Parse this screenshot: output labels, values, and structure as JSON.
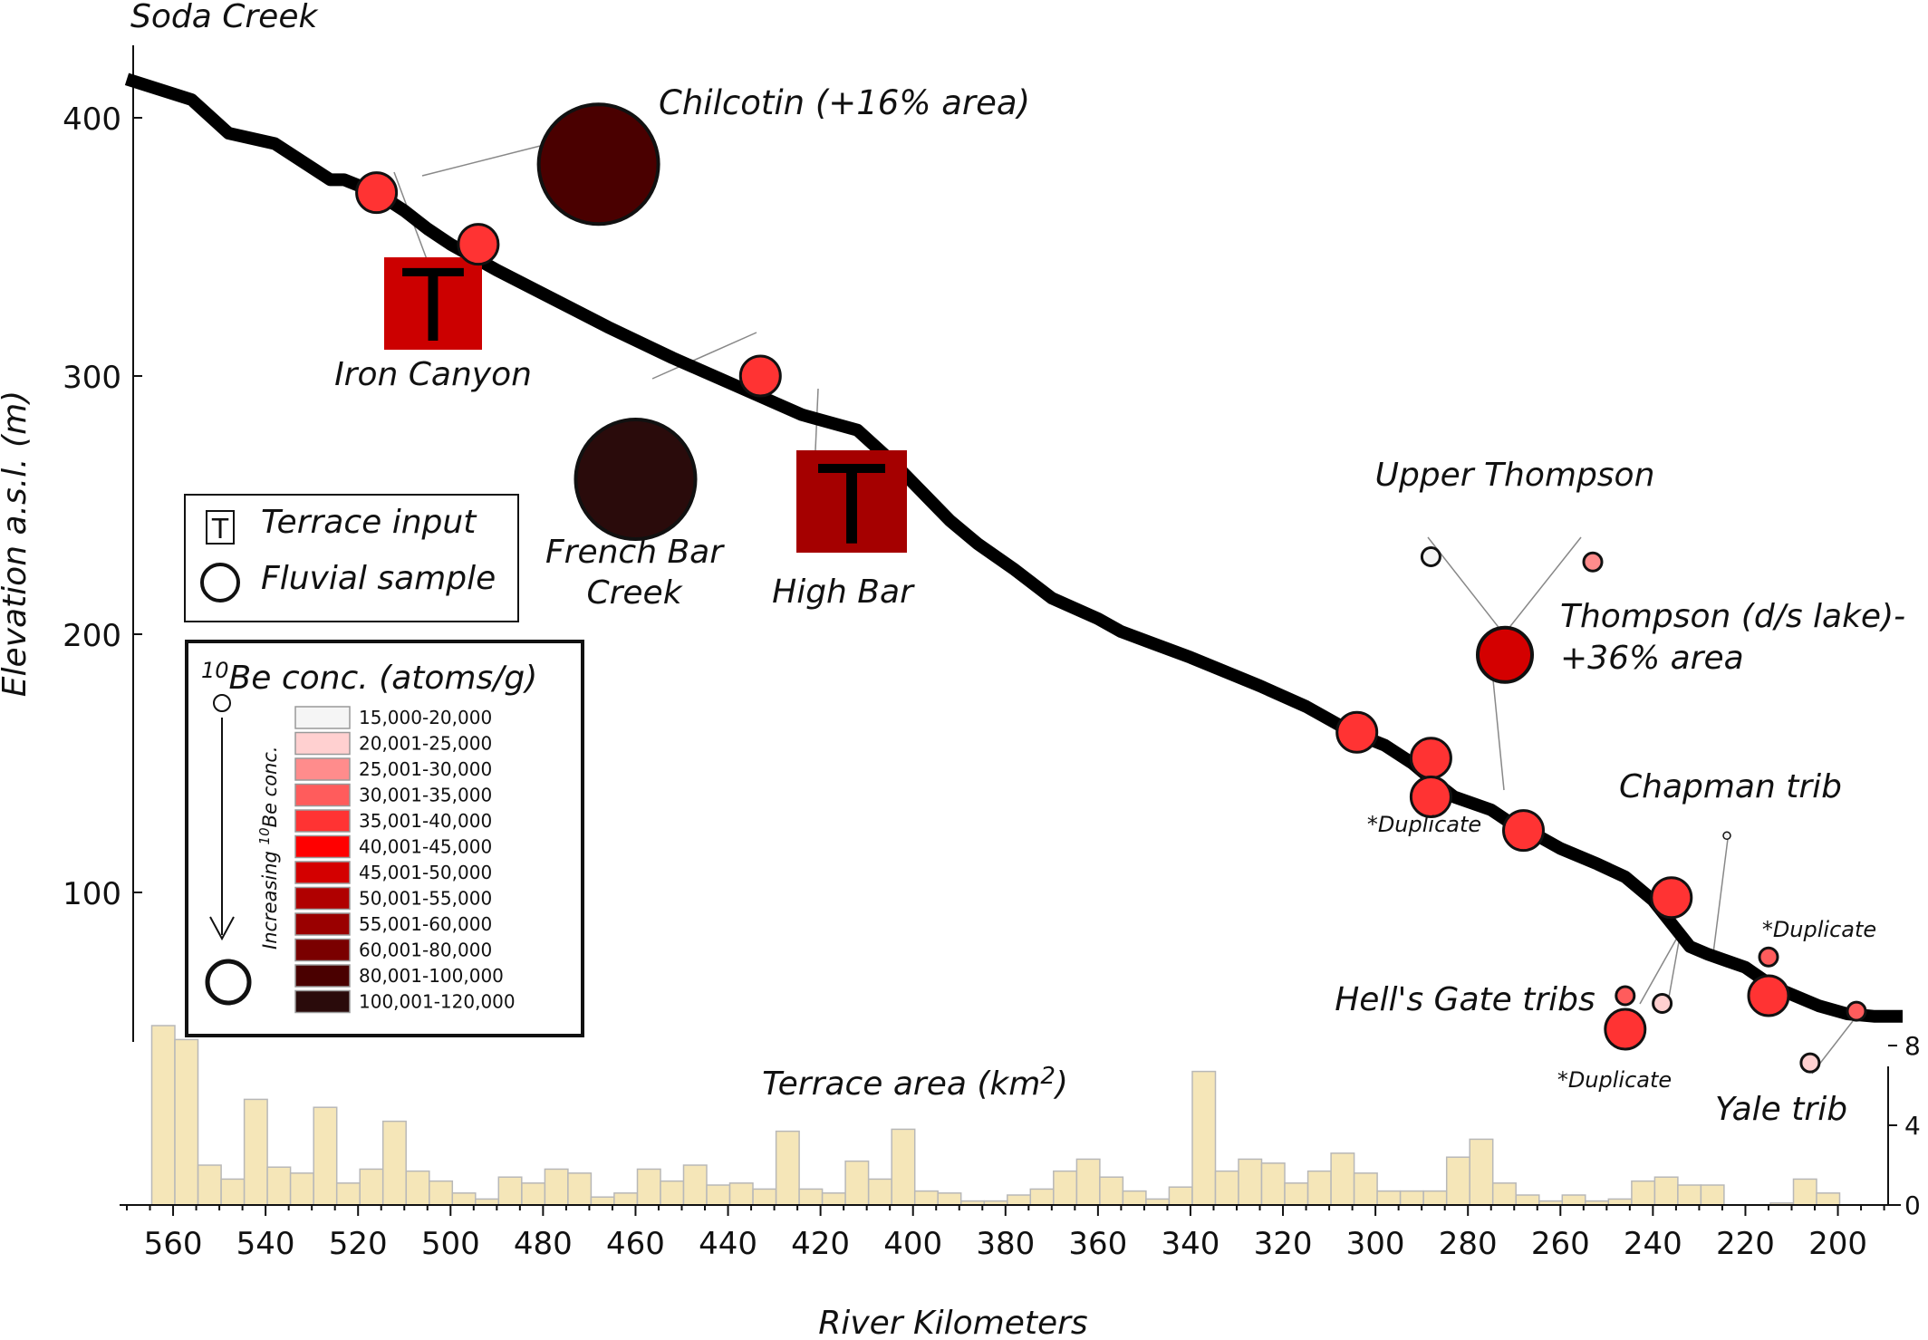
{
  "chart_data": [
    {
      "type": "line",
      "title": "",
      "start_label": "Soda Creek",
      "xlabel": "River Kilometers",
      "ylabel": "Elevation a.s.l. (m)",
      "xlim": [
        570,
        186
      ],
      "ylim": [
        55,
        415
      ],
      "y_ticks": [
        100,
        200,
        300,
        400
      ],
      "x_ticks": [
        560,
        540,
        520,
        500,
        480,
        460,
        440,
        420,
        400,
        380,
        360,
        340,
        320,
        300,
        280,
        260,
        240,
        220,
        200
      ],
      "grid": false,
      "profile": {
        "x": [
          570,
          556,
          548,
          538,
          526,
          523,
          516,
          510,
          505,
          500,
          490,
          478,
          466,
          452,
          438,
          424,
          412,
          404,
          398,
          392,
          386,
          378,
          370,
          360,
          355,
          340,
          325,
          315,
          305,
          298,
          292,
          288,
          283,
          275,
          270,
          265,
          260,
          252,
          246,
          240,
          236,
          232,
          228,
          220,
          216,
          212,
          204,
          198,
          192,
          186
        ],
        "y": [
          415,
          407,
          394,
          390,
          376,
          376,
          371,
          364,
          357,
          351,
          341,
          330,
          319,
          307,
          296,
          285,
          279,
          266,
          255,
          244,
          235,
          225,
          214,
          206,
          201,
          191,
          180,
          172,
          162,
          157,
          150,
          144,
          137,
          132,
          126,
          122,
          117,
          111,
          106,
          97,
          88,
          79,
          76,
          71,
          66,
          62,
          56,
          53,
          52,
          52
        ]
      },
      "fluvial_samples": [
        {
          "km": 516,
          "elev": 371,
          "conc_class": "35,001-40,000",
          "size": "medium"
        },
        {
          "km": 494,
          "elev": 351,
          "conc_class": "35,001-40,000",
          "size": "medium"
        },
        {
          "km": 468,
          "elev": 382,
          "conc_class": "80,001-100,000",
          "size": "large",
          "label": "Chilcotin (+16% area)"
        },
        {
          "km": 460,
          "elev": 260,
          "conc_class": "100,001-120,000",
          "size": "large",
          "label": "French Bar Creek"
        },
        {
          "km": 433,
          "elev": 300,
          "conc_class": "35,001-40,000",
          "size": "medium"
        },
        {
          "km": 304,
          "elev": 162,
          "conc_class": "35,001-40,000",
          "size": "medium"
        },
        {
          "km": 288,
          "elev": 152,
          "conc_class": "35,001-40,000",
          "size": "medium"
        },
        {
          "km": 288,
          "elev": 137,
          "conc_class": "35,001-40,000",
          "size": "medium",
          "label": "*Duplicate"
        },
        {
          "km": 288,
          "elev": 230,
          "conc_class": "15,000-20,000",
          "size": "small"
        },
        {
          "km": 253,
          "elev": 228,
          "conc_class": "25,001-30,000",
          "size": "small"
        },
        {
          "km": 272,
          "elev": 192,
          "conc_class": "45,001-50,000",
          "size": "large",
          "label": "Thompson (d/s lake)- +36% area"
        },
        {
          "km": 268,
          "elev": 124,
          "conc_class": "35,001-40,000",
          "size": "medium"
        },
        {
          "km": 236,
          "elev": 98,
          "conc_class": "35,001-40,000",
          "size": "medium"
        },
        {
          "km": 224,
          "elev": 122,
          "conc_class": "15,000-20,000",
          "size": "tiny"
        },
        {
          "km": 215,
          "elev": 75,
          "conc_class": "30,001-35,000",
          "size": "small"
        },
        {
          "km": 215,
          "elev": 60,
          "conc_class": "35,001-40,000",
          "size": "medium"
        },
        {
          "km": 246,
          "elev": 60,
          "conc_class": "30,001-35,000",
          "size": "small"
        },
        {
          "km": 238,
          "elev": 57,
          "conc_class": "20,001-25,000",
          "size": "small"
        },
        {
          "km": 246,
          "elev": 47,
          "conc_class": "35,001-40,000",
          "size": "medium"
        },
        {
          "km": 196,
          "elev": 54,
          "conc_class": "30,001-35,000",
          "size": "small"
        },
        {
          "km": 206,
          "elev": 34,
          "conc_class": "20,001-25,000",
          "size": "small"
        }
      ],
      "terrace_inputs": [
        {
          "km": 505,
          "label": "Iron Canyon",
          "symbol": "T",
          "color": "#cc0000"
        },
        {
          "km": 422,
          "label": "High Bar",
          "symbol": "T",
          "color": "#a50000"
        }
      ],
      "annotations": [
        "Upper Thompson",
        "Chapman trib",
        "Hell's Gate tribs",
        "Yale trib",
        "*Duplicate",
        "*Duplicate"
      ],
      "legend": {
        "placement": "left",
        "symbol_items": [
          {
            "symbol": "T",
            "label": "Terrace input"
          },
          {
            "symbol": "circle",
            "label": "Fluvial sample"
          }
        ],
        "color_title_sup": "10",
        "color_title": "Be conc. (atoms/g)",
        "arrow_label_pre": "Increasing ",
        "arrow_label_sup": "10",
        "arrow_label_post": "Be conc.",
        "classes": [
          {
            "label": "15,000-20,000",
            "color": "#f5f5f5"
          },
          {
            "label": "20,001-25,000",
            "color": "#ffd0d0"
          },
          {
            "label": "25,001-30,000",
            "color": "#ff8c8c"
          },
          {
            "label": "30,001-35,000",
            "color": "#ff5c5c"
          },
          {
            "label": "35,001-40,000",
            "color": "#ff3333"
          },
          {
            "label": "40,001-45,000",
            "color": "#ff0000"
          },
          {
            "label": "45,001-50,000",
            "color": "#d40000"
          },
          {
            "label": "50,001-55,000",
            "color": "#b00000"
          },
          {
            "label": "55,001-60,000",
            "color": "#9a0000"
          },
          {
            "label": "60,001-80,000",
            "color": "#7a0000"
          },
          {
            "label": "80,001-100,000",
            "color": "#4a0000"
          },
          {
            "label": "100,001-120,000",
            "color": "#2a0b0b"
          }
        ]
      }
    },
    {
      "type": "bar",
      "title_pre": "Terrace area (km",
      "title_sup": "2",
      "title_post": ")",
      "xlabel": "River Kilometers",
      "ylabel": "",
      "ylim": [
        0,
        9
      ],
      "y_ticks": [
        0,
        4,
        8
      ],
      "y_axis_side": "right",
      "bin_width_km": 5,
      "bin_start_km": [
        565,
        560,
        555,
        550,
        545,
        540,
        535,
        530,
        525,
        520,
        515,
        510,
        505,
        500,
        495,
        490,
        485,
        480,
        475,
        470,
        465,
        460,
        455,
        450,
        445,
        440,
        435,
        430,
        425,
        420,
        415,
        410,
        405,
        400,
        395,
        390,
        385,
        380,
        375,
        370,
        365,
        360,
        355,
        350,
        345,
        340,
        335,
        330,
        325,
        320,
        315,
        310,
        305,
        300,
        295,
        290,
        285,
        280,
        275,
        270,
        265,
        260,
        255,
        250,
        245,
        240,
        235,
        230,
        225,
        220,
        215,
        210,
        205,
        200
      ],
      "values": [
        9.0,
        8.3,
        2.0,
        1.3,
        5.3,
        1.9,
        1.6,
        4.9,
        1.1,
        1.8,
        4.2,
        1.7,
        1.2,
        0.6,
        0.3,
        1.4,
        1.1,
        1.8,
        1.6,
        0.4,
        0.6,
        1.8,
        1.2,
        2.0,
        1.0,
        1.1,
        0.8,
        3.7,
        0.8,
        0.6,
        2.2,
        1.3,
        3.8,
        0.7,
        0.6,
        0.2,
        0.2,
        0.5,
        0.8,
        1.7,
        2.3,
        1.4,
        0.7,
        0.3,
        0.9,
        6.7,
        1.7,
        2.3,
        2.1,
        1.1,
        1.7,
        2.6,
        1.6,
        0.7,
        0.7,
        0.7,
        2.4,
        3.3,
        1.1,
        0.5,
        0.2,
        0.5,
        0.2,
        0.3,
        1.2,
        1.4,
        1.0,
        1.0,
        0.0,
        0.0,
        0.1,
        1.3,
        0.6,
        0.0
      ],
      "bar_color": "#f5e6b8",
      "bar_edge_color": "#b8b8b8"
    }
  ]
}
